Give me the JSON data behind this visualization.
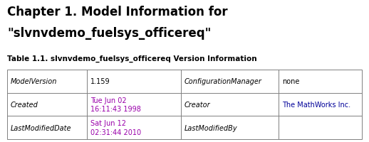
{
  "title_line1": "Chapter 1. Model Information for",
  "title_line2": "\"slvnvdemo_fuelsys_officereq\"",
  "table_caption": "Table 1.1. slvnvdemo_fuelsys_officereq Version Information",
  "bg_color": "#ffffff",
  "border_color": "#808080",
  "title_color": "#000000",
  "caption_color": "#000000",
  "rows": [
    {
      "col1_text": "ModelVersion",
      "col1_italic": true,
      "col2_text": "1.159",
      "col2_color": "#000000",
      "col3_text": "ConfigurationManager",
      "col3_italic": true,
      "col4_text": "none",
      "col4_color": "#000000"
    },
    {
      "col1_text": "Created",
      "col1_italic": true,
      "col2_text": "Tue Jun 02\n16:11:43 1998",
      "col2_color": "#9900AA",
      "col3_text": "Creator",
      "col3_italic": true,
      "col4_text": "The MathWorks Inc.",
      "col4_color": "#000099"
    },
    {
      "col1_text": "LastModifiedDate",
      "col1_italic": true,
      "col2_text": "Sat Jun 12\n02:31:44 2010",
      "col2_color": "#9900AA",
      "col3_text": "LastModifiedBy",
      "col3_italic": true,
      "col4_text": "",
      "col4_color": "#000000"
    }
  ],
  "figsize": [
    5.18,
    2.01
  ],
  "dpi": 100
}
